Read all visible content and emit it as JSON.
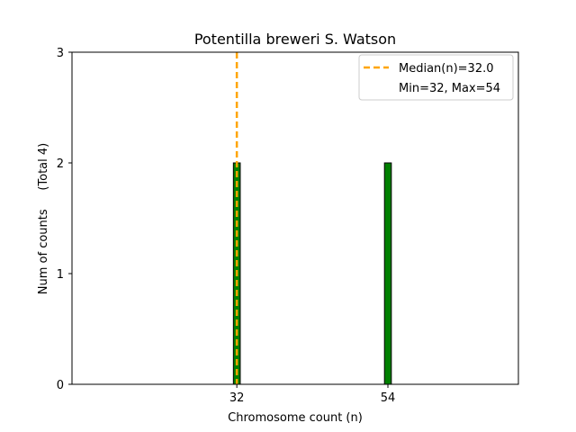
{
  "chart_data": {
    "type": "bar",
    "title": "Potentilla breweri S. Watson",
    "xlabel": "Chromosome count (n)",
    "ylabel": "Num of counts     (Total 4)",
    "xlim": [
      8,
      73
    ],
    "ylim": [
      0,
      3
    ],
    "x_ticks": [
      32,
      54
    ],
    "y_ticks": [
      0,
      1,
      2,
      3
    ],
    "bar_width": 1,
    "bars": [
      {
        "x": 32,
        "count": 2
      },
      {
        "x": 54,
        "count": 2
      }
    ],
    "median": 32.0,
    "grid": false,
    "legend_position": "top-right",
    "legend": [
      {
        "label": "Median(n)=32.0",
        "style": "dashed-line"
      },
      {
        "label": "Min=32, Max=54",
        "style": "none"
      }
    ],
    "colors": {
      "bar_fill": "#008000",
      "bar_edge": "#000000",
      "median_line": "#ffa500",
      "baseline": "#1f77b4"
    }
  }
}
